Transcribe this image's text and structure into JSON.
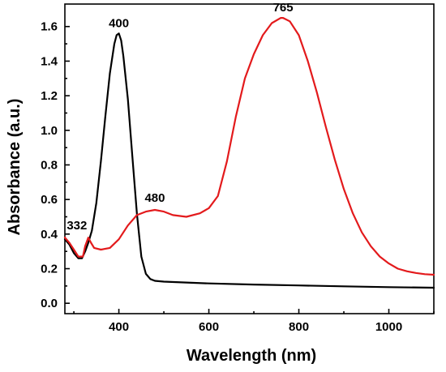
{
  "chart_data": {
    "type": "line",
    "title": "",
    "xlabel": "Wavelength (nm)",
    "ylabel": "Absorbance (a.u.)",
    "xlim": [
      280,
      1100
    ],
    "ylim": [
      -0.06,
      1.73
    ],
    "x_ticks": [
      400,
      600,
      800,
      1000
    ],
    "x_tick_labels": [
      "400",
      "600",
      "800",
      "1000"
    ],
    "y_ticks": [
      0.0,
      0.2,
      0.4,
      0.6,
      0.8,
      1.0,
      1.2,
      1.4,
      1.6
    ],
    "y_tick_labels": [
      "0.0",
      "0.2",
      "0.4",
      "0.6",
      "0.8",
      "1.0",
      "1.2",
      "1.4",
      "1.6"
    ],
    "grid": false,
    "legend": "none",
    "series": [
      {
        "color": "#000000",
        "x": [
          280,
          290,
          300,
          310,
          318,
          325,
          332,
          340,
          350,
          360,
          370,
          380,
          390,
          395,
          400,
          405,
          410,
          420,
          430,
          440,
          450,
          460,
          470,
          480,
          500,
          550,
          600,
          700,
          800,
          900,
          1000,
          1100
        ],
        "y": [
          0.37,
          0.34,
          0.29,
          0.26,
          0.26,
          0.3,
          0.35,
          0.42,
          0.58,
          0.82,
          1.08,
          1.33,
          1.5,
          1.55,
          1.56,
          1.52,
          1.43,
          1.18,
          0.85,
          0.52,
          0.27,
          0.17,
          0.14,
          0.13,
          0.125,
          0.12,
          0.115,
          0.108,
          0.103,
          0.098,
          0.093,
          0.09
        ]
      },
      {
        "color": "#e31a1c",
        "x": [
          280,
          290,
          300,
          310,
          320,
          325,
          332,
          338,
          345,
          360,
          380,
          400,
          420,
          440,
          460,
          480,
          500,
          520,
          550,
          580,
          600,
          620,
          640,
          660,
          680,
          700,
          720,
          740,
          760,
          765,
          780,
          800,
          820,
          840,
          860,
          880,
          900,
          920,
          940,
          960,
          980,
          1000,
          1020,
          1040,
          1060,
          1080,
          1100
        ],
        "y": [
          0.38,
          0.35,
          0.31,
          0.27,
          0.27,
          0.33,
          0.38,
          0.35,
          0.32,
          0.31,
          0.32,
          0.37,
          0.45,
          0.51,
          0.53,
          0.54,
          0.53,
          0.51,
          0.5,
          0.52,
          0.55,
          0.62,
          0.82,
          1.08,
          1.3,
          1.44,
          1.55,
          1.62,
          1.65,
          1.65,
          1.63,
          1.55,
          1.4,
          1.22,
          1.02,
          0.83,
          0.66,
          0.52,
          0.41,
          0.33,
          0.27,
          0.23,
          0.2,
          0.185,
          0.175,
          0.168,
          0.165
        ]
      }
    ],
    "annotations": [
      {
        "text": "332",
        "x": 332,
        "y": 0.38
      },
      {
        "text": "400",
        "x": 400,
        "y": 1.56
      },
      {
        "text": "480",
        "x": 480,
        "y": 0.54
      },
      {
        "text": "765",
        "x": 765,
        "y": 1.65
      }
    ]
  }
}
